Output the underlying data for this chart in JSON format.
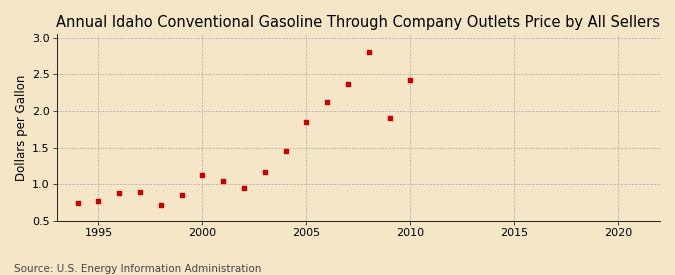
{
  "title": "Annual Idaho Conventional Gasoline Through Company Outlets Price by All Sellers",
  "ylabel": "Dollars per Gallon",
  "source": "Source: U.S. Energy Information Administration",
  "background_color": "#f5e6c8",
  "marker_color": "#cc0000",
  "years": [
    1994,
    1995,
    1996,
    1997,
    1998,
    1999,
    2000,
    2001,
    2002,
    2003,
    2004,
    2005,
    2006,
    2007,
    2008,
    2009,
    2010
  ],
  "values": [
    0.74,
    0.78,
    0.88,
    0.89,
    0.72,
    0.85,
    1.13,
    1.04,
    0.95,
    1.17,
    1.46,
    1.85,
    2.12,
    2.37,
    2.8,
    1.9,
    2.42
  ],
  "xlim": [
    1993,
    2022
  ],
  "ylim": [
    0.5,
    3.05
  ],
  "xticks": [
    1995,
    2000,
    2005,
    2010,
    2015,
    2020
  ],
  "yticks": [
    0.5,
    1.0,
    1.5,
    2.0,
    2.5,
    3.0
  ],
  "grid_color": "#b0b0b0",
  "title_fontsize": 10.5,
  "label_fontsize": 8.5,
  "tick_fontsize": 8,
  "source_fontsize": 7.5
}
